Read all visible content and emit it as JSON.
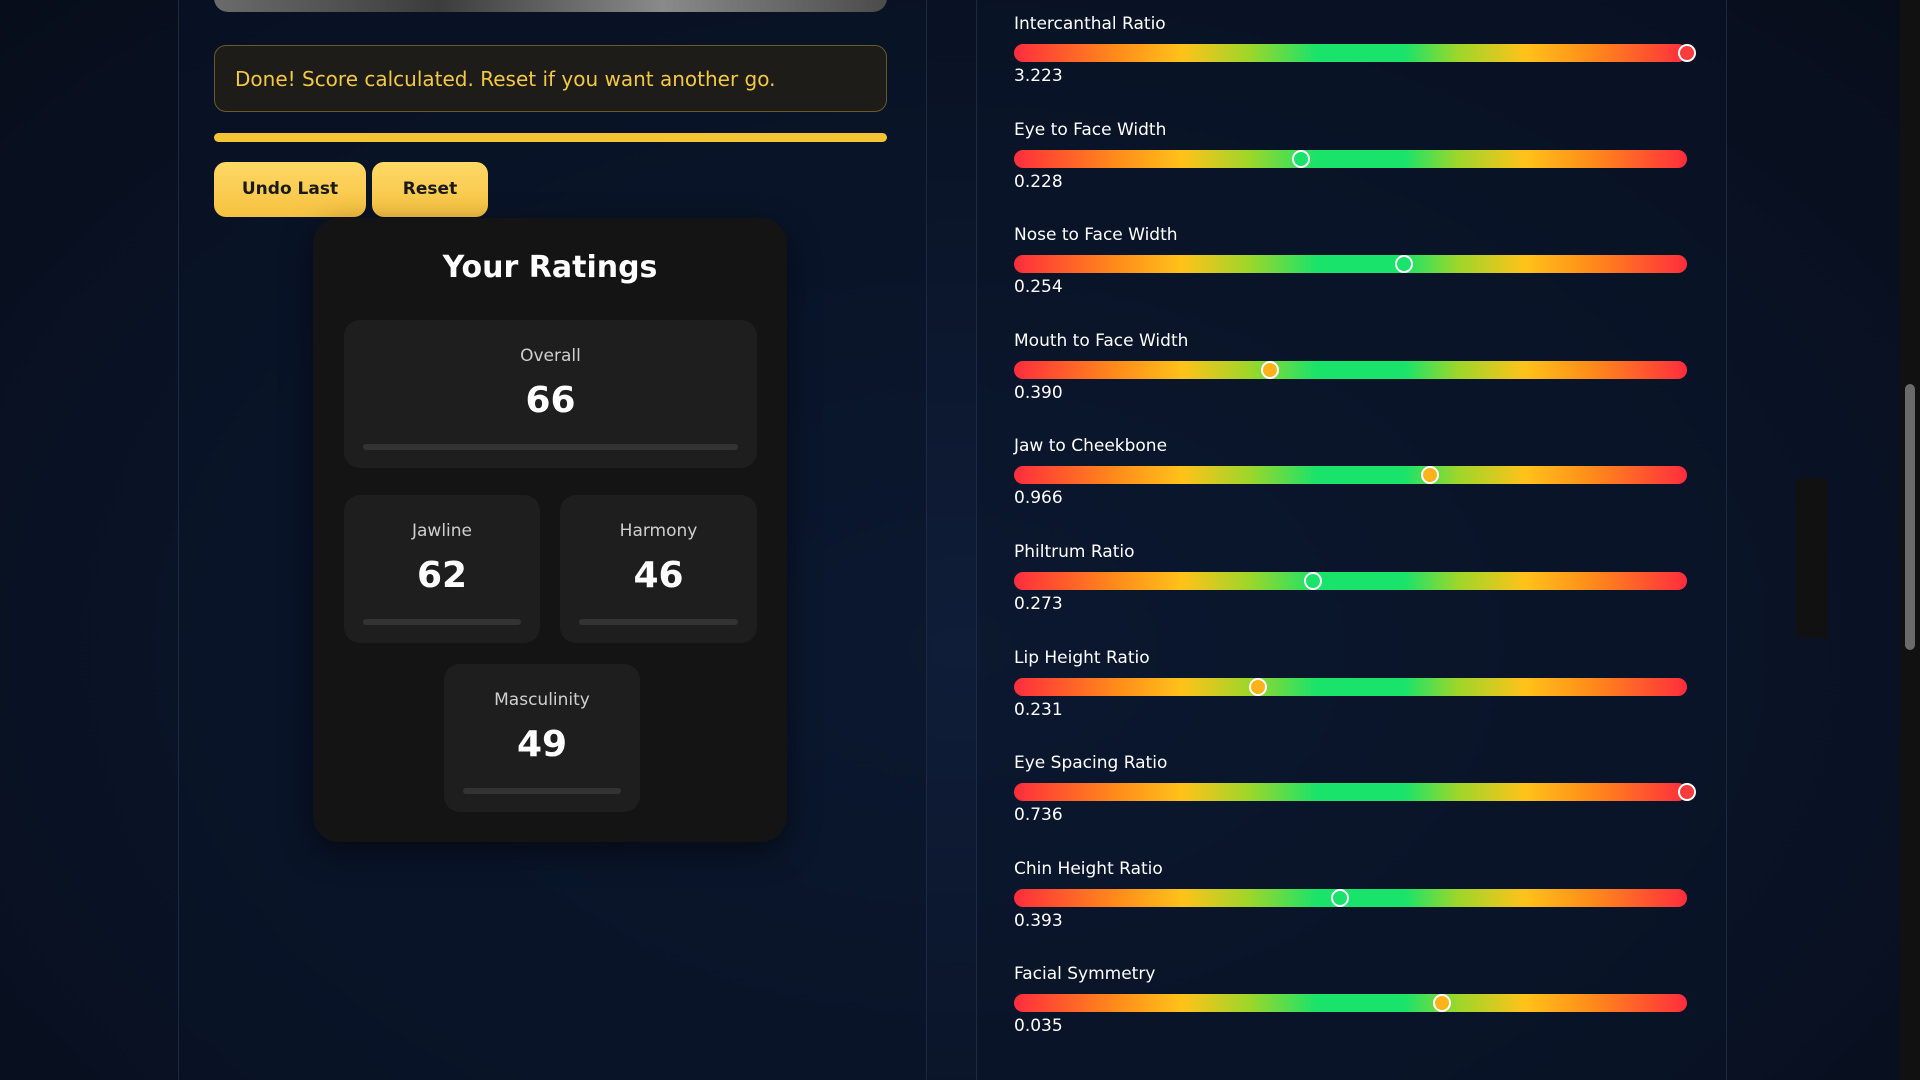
{
  "status": {
    "message": "Done! Score calculated. Reset if you want another go."
  },
  "buttons": {
    "undo": "Undo Last",
    "reset": "Reset"
  },
  "ratings": {
    "title": "Your Ratings",
    "overall": {
      "label": "Overall",
      "value": 66
    },
    "jawline": {
      "label": "Jawline",
      "value": 62
    },
    "harmony": {
      "label": "Harmony",
      "value": 46
    },
    "masculinity": {
      "label": "Masculinity",
      "value": 49
    }
  },
  "metrics": [
    {
      "label": "Intercanthal Ratio",
      "value": "3.223"
    },
    {
      "label": "Eye to Face Width",
      "value": "0.228"
    },
    {
      "label": "Nose to Face Width",
      "value": "0.254"
    },
    {
      "label": "Mouth to Face Width",
      "value": "0.390"
    },
    {
      "label": "Jaw to Cheekbone",
      "value": "0.966"
    },
    {
      "label": "Philtrum Ratio",
      "value": "0.273"
    },
    {
      "label": "Lip Height Ratio",
      "value": "0.231"
    },
    {
      "label": "Eye Spacing Ratio",
      "value": "0.736"
    },
    {
      "label": "Chin Height Ratio",
      "value": "0.393"
    },
    {
      "label": "Facial Symmetry",
      "value": "0.035"
    }
  ]
}
